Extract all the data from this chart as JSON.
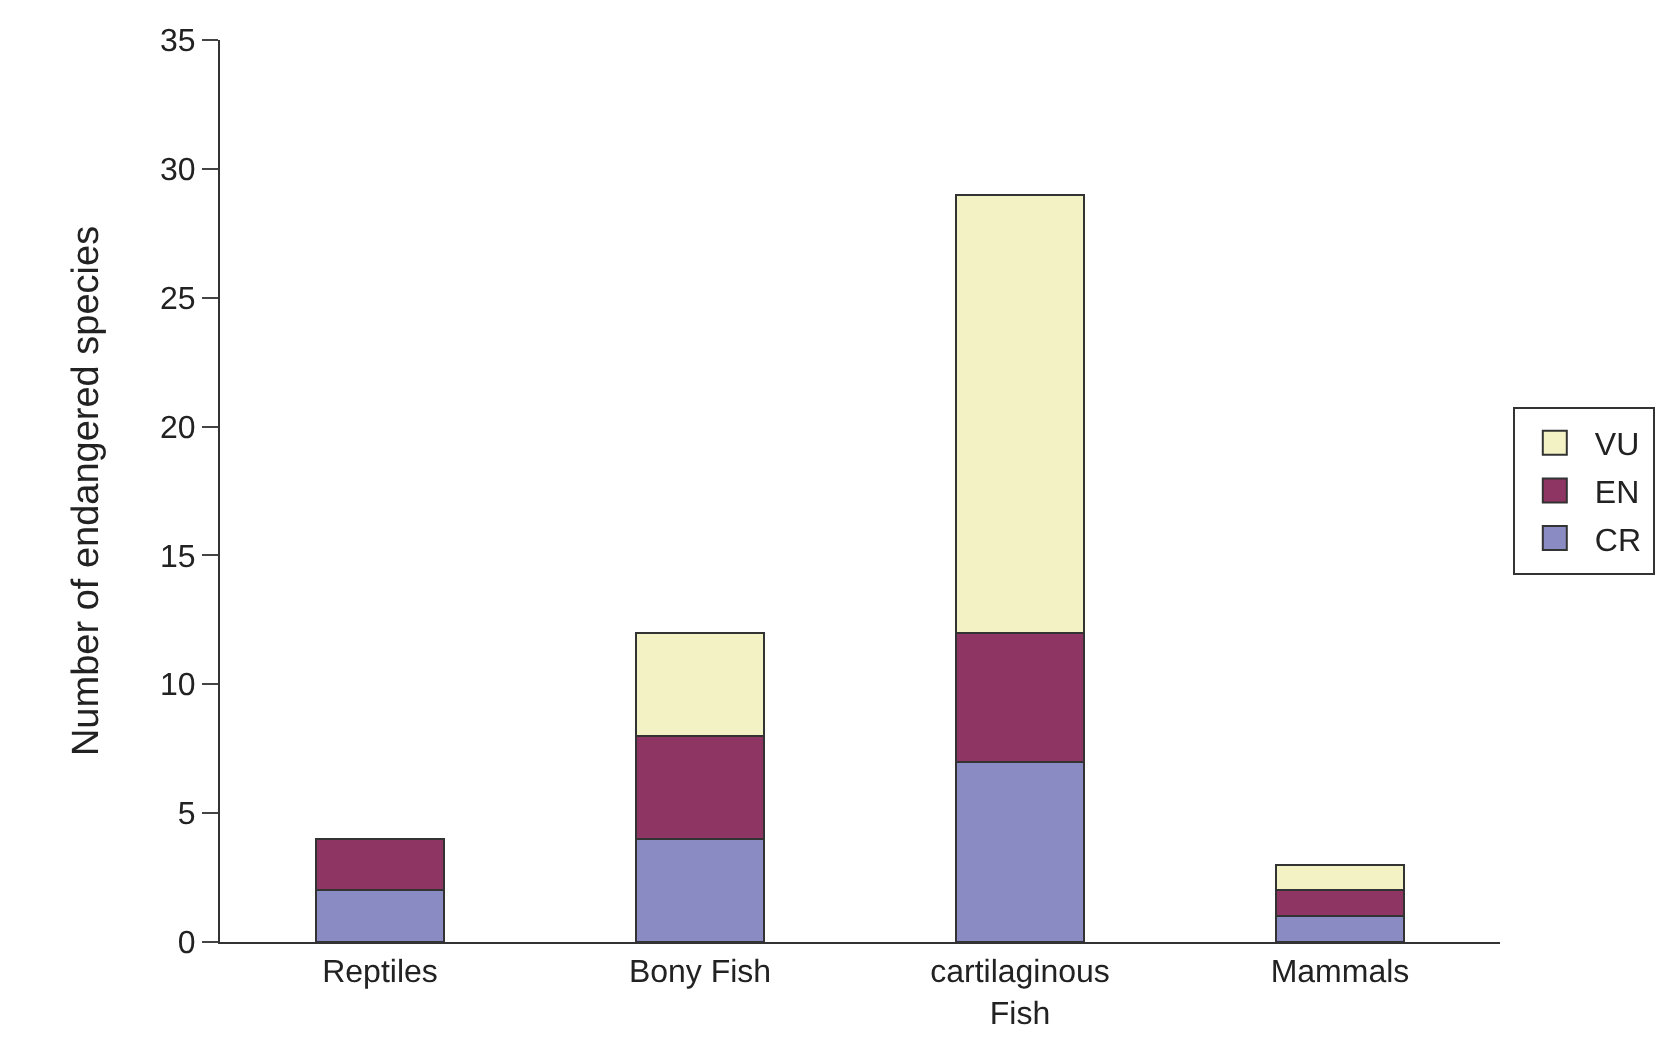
{
  "chart_data": {
    "type": "bar",
    "stacked": true,
    "ylabel": "Number of endangered species",
    "categories": [
      "Reptiles",
      "Bony Fish",
      "cartilaginous Fish",
      "Mammals"
    ],
    "series": [
      {
        "name": "CR",
        "color": "#8b8bc3",
        "values": [
          2,
          4,
          7,
          1
        ]
      },
      {
        "name": "EN",
        "color": "#8e3563",
        "values": [
          2,
          4,
          5,
          1
        ]
      },
      {
        "name": "VU",
        "color": "#f2f2c4",
        "values": [
          null,
          4,
          17,
          1
        ]
      }
    ],
    "ylim": [
      0,
      35
    ],
    "yticks": [
      0,
      5,
      10,
      15,
      20,
      25,
      30,
      35
    ],
    "grid": false,
    "legend": "right"
  }
}
